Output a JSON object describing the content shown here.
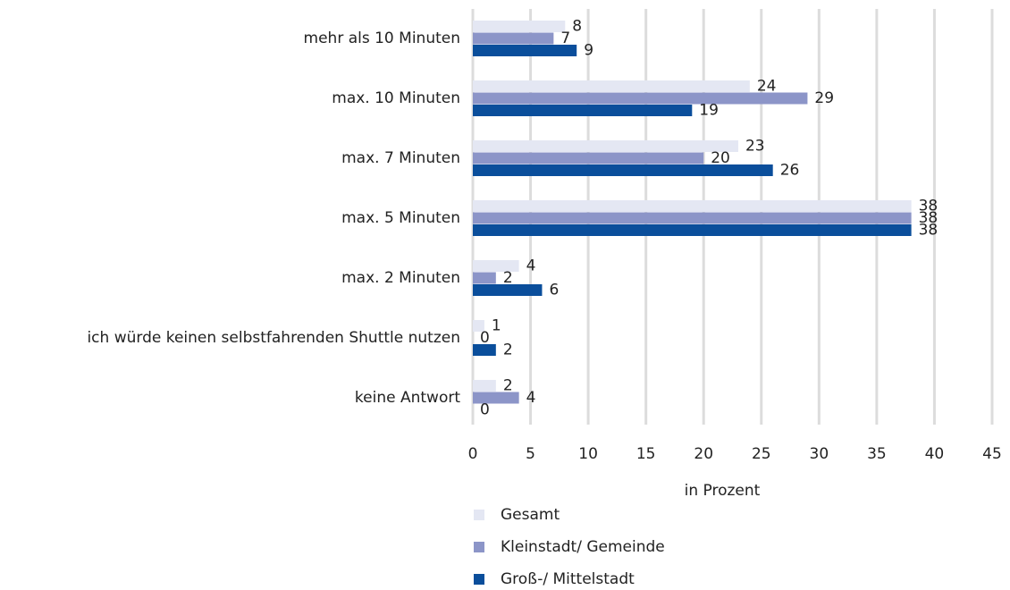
{
  "chart_data": {
    "type": "barh",
    "categories": [
      "mehr als 10 Minuten",
      "max. 10 Minuten",
      "max. 7 Minuten",
      "max. 5 Minuten",
      "max. 2 Minuten",
      "ich würde keinen selbstfahrenden Shuttle nutzen",
      "keine Antwort"
    ],
    "series": [
      {
        "name": "Gesamt",
        "color": "#e4e7f3",
        "values": [
          8,
          24,
          23,
          38,
          4,
          1,
          2
        ]
      },
      {
        "name": "Kleinstadt/ Gemeinde",
        "color": "#8c95c8",
        "values": [
          7,
          29,
          20,
          38,
          2,
          0,
          4
        ]
      },
      {
        "name": "Groß-/ Mittelstadt",
        "color": "#0a4e9b",
        "values": [
          9,
          19,
          26,
          38,
          6,
          2,
          0
        ]
      }
    ],
    "xlabel": "in Prozent",
    "xlim": [
      0,
      45
    ],
    "xticks": [
      0,
      5,
      10,
      15,
      20,
      25,
      30,
      35,
      40,
      45
    ],
    "grid": true,
    "legend": "bottom"
  }
}
